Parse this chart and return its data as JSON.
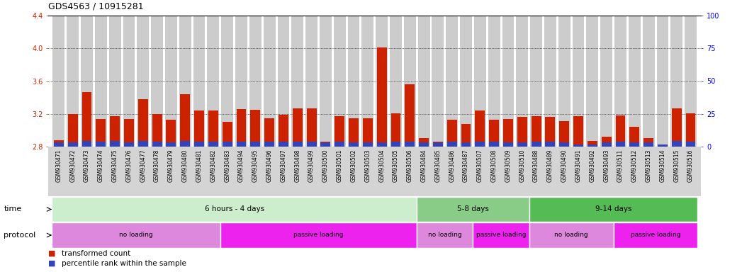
{
  "title": "GDS4563 / 10915281",
  "samples": [
    "GSM930471",
    "GSM930472",
    "GSM930473",
    "GSM930474",
    "GSM930475",
    "GSM930476",
    "GSM930477",
    "GSM930478",
    "GSM930479",
    "GSM930480",
    "GSM930481",
    "GSM930482",
    "GSM930483",
    "GSM930494",
    "GSM930495",
    "GSM930496",
    "GSM930497",
    "GSM930498",
    "GSM930499",
    "GSM930500",
    "GSM930501",
    "GSM930502",
    "GSM930503",
    "GSM930504",
    "GSM930505",
    "GSM930506",
    "GSM930484",
    "GSM930485",
    "GSM930486",
    "GSM930487",
    "GSM930507",
    "GSM930508",
    "GSM930509",
    "GSM930510",
    "GSM930488",
    "GSM930489",
    "GSM930490",
    "GSM930491",
    "GSM930492",
    "GSM930493",
    "GSM930511",
    "GSM930512",
    "GSM930513",
    "GSM930514",
    "GSM930515",
    "GSM930516"
  ],
  "red_values": [
    2.88,
    3.2,
    3.47,
    3.14,
    3.17,
    3.14,
    3.38,
    3.2,
    3.13,
    3.44,
    3.24,
    3.24,
    3.1,
    3.26,
    3.25,
    3.15,
    3.19,
    3.27,
    3.27,
    2.86,
    3.17,
    3.15,
    3.15,
    4.01,
    3.21,
    3.56,
    2.9,
    2.86,
    3.13,
    3.08,
    3.24,
    3.13,
    3.14,
    3.16,
    3.17,
    3.16,
    3.11,
    3.17,
    2.87,
    2.92,
    3.18,
    3.04,
    2.9,
    2.8,
    3.27,
    3.21
  ],
  "blue_values": [
    0.05,
    0.05,
    0.07,
    0.06,
    0.07,
    0.05,
    0.07,
    0.06,
    0.05,
    0.07,
    0.06,
    0.06,
    0.06,
    0.06,
    0.06,
    0.06,
    0.06,
    0.06,
    0.06,
    0.05,
    0.06,
    0.05,
    0.05,
    0.05,
    0.06,
    0.06,
    0.05,
    0.05,
    0.06,
    0.05,
    0.06,
    0.06,
    0.05,
    0.05,
    0.06,
    0.06,
    0.05,
    0.03,
    0.03,
    0.05,
    0.06,
    0.05,
    0.05,
    0.03,
    0.07,
    0.06
  ],
  "ylim_left": [
    2.8,
    4.4
  ],
  "ylim_right": [
    0,
    100
  ],
  "yticks_left": [
    2.8,
    3.2,
    3.6,
    4.0,
    4.4
  ],
  "yticks_right": [
    0,
    25,
    50,
    75,
    100
  ],
  "grid_lines": [
    3.2,
    3.6,
    4.0
  ],
  "bar_color_red": "#cc2200",
  "bar_color_blue": "#3344bb",
  "bg_color": "#ffffff",
  "bar_bg_color": "#cccccc",
  "time_groups": [
    {
      "label": "6 hours - 4 days",
      "start": 0,
      "end": 26,
      "color": "#cceecc"
    },
    {
      "label": "5-8 days",
      "start": 26,
      "end": 34,
      "color": "#88cc88"
    },
    {
      "label": "9-14 days",
      "start": 34,
      "end": 46,
      "color": "#55bb55"
    }
  ],
  "protocol_groups": [
    {
      "label": "no loading",
      "start": 0,
      "end": 12,
      "color": "#dd88dd"
    },
    {
      "label": "passive loading",
      "start": 12,
      "end": 26,
      "color": "#ee22ee"
    },
    {
      "label": "no loading",
      "start": 26,
      "end": 30,
      "color": "#dd88dd"
    },
    {
      "label": "passive loading",
      "start": 30,
      "end": 34,
      "color": "#ee22ee"
    },
    {
      "label": "no loading",
      "start": 34,
      "end": 40,
      "color": "#dd88dd"
    },
    {
      "label": "passive loading",
      "start": 40,
      "end": 46,
      "color": "#ee22ee"
    }
  ],
  "legend_red_label": "transformed count",
  "legend_blue_label": "percentile rank within the sample"
}
